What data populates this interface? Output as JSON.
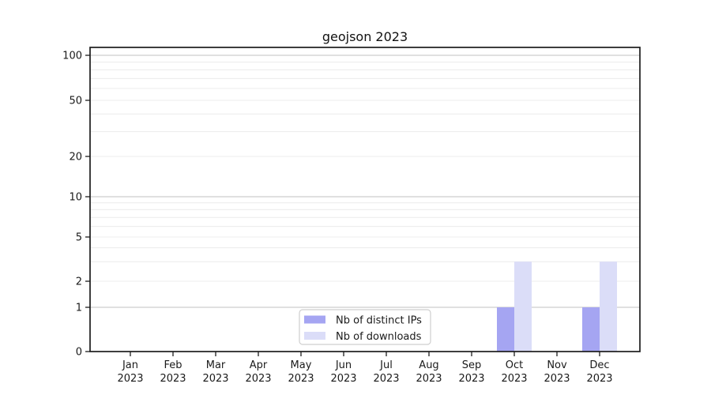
{
  "chart_data": {
    "type": "bar",
    "title": "geojson 2023",
    "categories": [
      "Jan 2023",
      "Feb 2023",
      "Mar 2023",
      "Apr 2023",
      "May 2023",
      "Jun 2023",
      "Jul 2023",
      "Aug 2023",
      "Sep 2023",
      "Oct 2023",
      "Nov 2023",
      "Dec 2023"
    ],
    "series": [
      {
        "name": "Nb of distinct IPs",
        "color": "#a5a5f2",
        "values": [
          0,
          0,
          0,
          0,
          0,
          0,
          0,
          0,
          0,
          1,
          0,
          1
        ]
      },
      {
        "name": "Nb of downloads",
        "color": "#dbddf8",
        "values": [
          0,
          0,
          0,
          0,
          0,
          0,
          0,
          0,
          0,
          3,
          0,
          3
        ]
      }
    ],
    "xlabel": "",
    "ylabel": "",
    "yscale": "symlog",
    "yticks": [
      0,
      1,
      2,
      5,
      10,
      20,
      50,
      100
    ],
    "ylim": [
      0,
      130
    ],
    "grid": {
      "on": true,
      "major_lines": [
        1,
        10,
        100
      ],
      "minor_lines": [
        2,
        3,
        4,
        5,
        6,
        7,
        8,
        9,
        20,
        30,
        40,
        50,
        60,
        70,
        80,
        90
      ]
    },
    "legend": {
      "position": "lower center",
      "entries": [
        "Nb of distinct IPs",
        "Nb of downloads"
      ]
    }
  },
  "colors": {
    "bar_distinct_ips": "#a5a5f2",
    "bar_downloads": "#dbddf8",
    "grid_major": "#c2c2c2",
    "grid_minor": "#ececec",
    "axis": "#1c1c1c",
    "text": "#1a1a1a",
    "legend_border": "#cfcfcf",
    "background": "#ffffff"
  }
}
